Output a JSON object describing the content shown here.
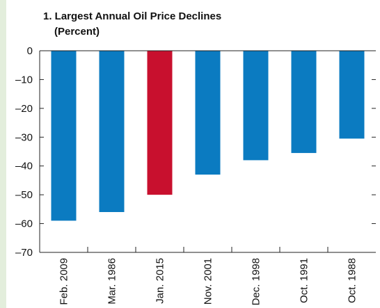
{
  "chart_data": {
    "type": "bar",
    "title": "1. Largest Annual Oil Price Declines",
    "subtitle": "(Percent)",
    "categories": [
      "Feb. 2009",
      "Mar. 1986",
      "Jan. 2015",
      "Nov. 2001",
      "Dec. 1998",
      "Oct. 1991",
      "Oct. 1988"
    ],
    "values": [
      -59,
      -56,
      -50,
      -43,
      -38,
      -35.5,
      -30.5
    ],
    "colors": [
      "#0b7bc1",
      "#0b7bc1",
      "#c8102e",
      "#0b7bc1",
      "#0b7bc1",
      "#0b7bc1",
      "#0b7bc1"
    ],
    "ylim": [
      -70,
      0
    ],
    "yticks": [
      0,
      {
        "value": -10,
        "label": "–10"
      },
      {
        "value": -20,
        "label": "–20"
      },
      {
        "value": -30,
        "label": "–30"
      },
      {
        "value": -40,
        "label": "–40"
      },
      {
        "value": -50,
        "label": "–50"
      },
      {
        "value": -60,
        "label": "–60"
      },
      {
        "value": -70,
        "label": "–70"
      }
    ],
    "grid": false
  }
}
